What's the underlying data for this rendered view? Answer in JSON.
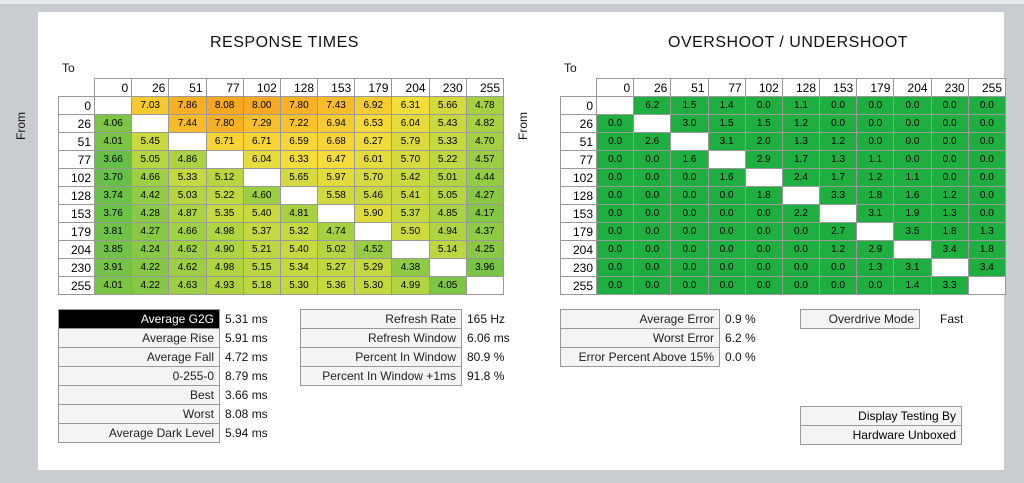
{
  "response": {
    "title": "RESPONSE TIMES",
    "to_label": "To",
    "from_label": "From",
    "levels": [
      "0",
      "26",
      "51",
      "77",
      "102",
      "128",
      "153",
      "179",
      "204",
      "230",
      "255"
    ],
    "rows": [
      [
        "",
        "7.03",
        "7.86",
        "8.08",
        "8.00",
        "7.80",
        "7.43",
        "6.92",
        "6.31",
        "5.66",
        "4.78"
      ],
      [
        "4.06",
        "",
        "7.44",
        "7.80",
        "7.29",
        "7.22",
        "6.94",
        "6.53",
        "6.04",
        "5.43",
        "4.82"
      ],
      [
        "4.01",
        "5.45",
        "",
        "6.71",
        "6.71",
        "6.59",
        "6.68",
        "6.27",
        "5.79",
        "5.33",
        "4.70"
      ],
      [
        "3.66",
        "5.05",
        "4.86",
        "",
        "6.04",
        "6.33",
        "6.47",
        "6.01",
        "5.70",
        "5.22",
        "4.57"
      ],
      [
        "3.70",
        "4.66",
        "5.33",
        "5.12",
        "",
        "5.65",
        "5.97",
        "5.70",
        "5.42",
        "5.01",
        "4.44"
      ],
      [
        "3.74",
        "4.42",
        "5.03",
        "5.22",
        "4.60",
        "",
        "5.58",
        "5.46",
        "5.41",
        "5.05",
        "4.27"
      ],
      [
        "3.76",
        "4.28",
        "4.87",
        "5.35",
        "5.40",
        "4.81",
        "",
        "5.90",
        "5.37",
        "4.85",
        "4.17"
      ],
      [
        "3.81",
        "4.27",
        "4.66",
        "4.98",
        "5.37",
        "5.32",
        "4.74",
        "",
        "5.50",
        "4.94",
        "4.37"
      ],
      [
        "3.85",
        "4.24",
        "4.62",
        "4.90",
        "5.21",
        "5.40",
        "5.02",
        "4.52",
        "",
        "5.14",
        "4.25"
      ],
      [
        "3.91",
        "4.22",
        "4.62",
        "4.98",
        "5.15",
        "5.34",
        "5.27",
        "5.29",
        "4.38",
        "",
        "3.96"
      ],
      [
        "4.01",
        "4.22",
        "4.63",
        "4.93",
        "5.18",
        "5.30",
        "5.36",
        "5.30",
        "4.99",
        "4.05",
        ""
      ]
    ],
    "stats_left": [
      {
        "label": "Average G2G",
        "value": "5.31 ms",
        "highlight": true
      },
      {
        "label": "Average Rise",
        "value": "5.91 ms"
      },
      {
        "label": "Average Fall",
        "value": "4.72 ms"
      },
      {
        "label": "0-255-0",
        "value": "8.79 ms"
      },
      {
        "label": "Best",
        "value": "3.66 ms"
      },
      {
        "label": "Worst",
        "value": "8.08 ms"
      },
      {
        "label": "Average Dark Level",
        "value": "5.94 ms"
      }
    ],
    "stats_right": [
      {
        "label": "Refresh Rate",
        "value": "165 Hz"
      },
      {
        "label": "Refresh Window",
        "value": "6.06 ms"
      },
      {
        "label": "Percent In Window",
        "value": "80.9 %"
      },
      {
        "label": "Percent In Window +1ms",
        "value": "91.8 %"
      }
    ]
  },
  "overshoot": {
    "title": "OVERSHOOT / UNDERSHOOT",
    "to_label": "To",
    "from_label": "From",
    "levels": [
      "0",
      "26",
      "51",
      "77",
      "102",
      "128",
      "153",
      "179",
      "204",
      "230",
      "255"
    ],
    "rows": [
      [
        "",
        "6.2",
        "1.5",
        "1.4",
        "0.0",
        "1.1",
        "0.0",
        "0.0",
        "0.0",
        "0.0",
        "0.0"
      ],
      [
        "0.0",
        "",
        "3.0",
        "1.5",
        "1.5",
        "1.2",
        "0.0",
        "0.0",
        "0.0",
        "0.0",
        "0.0"
      ],
      [
        "0.0",
        "2.6",
        "",
        "3.1",
        "2.0",
        "1.3",
        "1.2",
        "0.0",
        "0.0",
        "0.0",
        "0.0"
      ],
      [
        "0.0",
        "0.0",
        "1.6",
        "",
        "2.9",
        "1.7",
        "1.3",
        "1.1",
        "0.0",
        "0.0",
        "0.0"
      ],
      [
        "0.0",
        "0.0",
        "0.0",
        "1.6",
        "",
        "2.4",
        "1.7",
        "1.2",
        "1.1",
        "0.0",
        "0.0"
      ],
      [
        "0.0",
        "0.0",
        "0.0",
        "0.0",
        "1.8",
        "",
        "3.3",
        "1.8",
        "1.6",
        "1.2",
        "0.0"
      ],
      [
        "0.0",
        "0.0",
        "0.0",
        "0.0",
        "0.0",
        "2.2",
        "",
        "3.1",
        "1.9",
        "1.3",
        "0.0"
      ],
      [
        "0.0",
        "0.0",
        "0.0",
        "0.0",
        "0.0",
        "0.0",
        "2.7",
        "",
        "3.5",
        "1.8",
        "1.3"
      ],
      [
        "0.0",
        "0.0",
        "0.0",
        "0.0",
        "0.0",
        "0.0",
        "1.2",
        "2.9",
        "",
        "3.4",
        "1.8"
      ],
      [
        "0.0",
        "0.0",
        "0.0",
        "0.0",
        "0.0",
        "0.0",
        "0.0",
        "1.3",
        "3.1",
        "",
        "3.4"
      ],
      [
        "0.0",
        "0.0",
        "0.0",
        "0.0",
        "0.0",
        "0.0",
        "0.0",
        "0.0",
        "1.4",
        "3.3",
        ""
      ]
    ],
    "stats_left": [
      {
        "label": "Average Error",
        "value": "0.9 %"
      },
      {
        "label": "Worst Error",
        "value": "6.2 %"
      },
      {
        "label": "Error Percent Above 15%",
        "value": "0.0 %"
      }
    ],
    "mode": {
      "label": "Overdrive Mode",
      "value": "Fast"
    },
    "credit": [
      "Display Testing By",
      "Hardware Unboxed"
    ]
  },
  "colors": {
    "green": "#1fae40",
    "yellow": "#f7dd3a",
    "orange": "#f9a61c",
    "lightgreen": "#8fc33f"
  }
}
